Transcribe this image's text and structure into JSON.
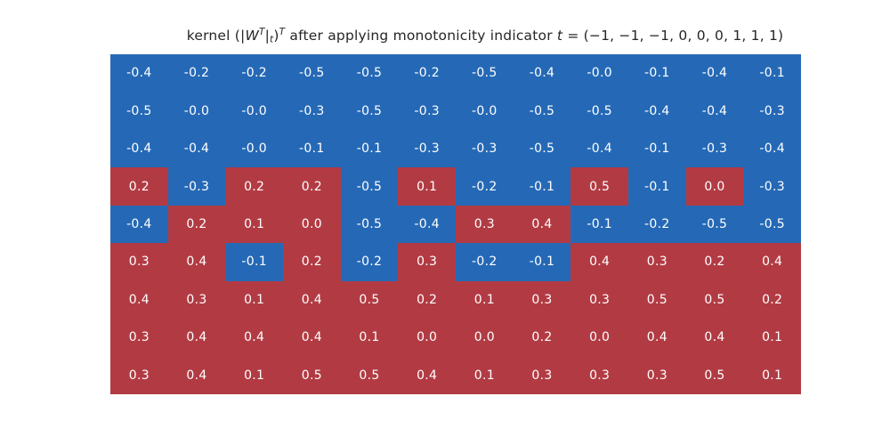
{
  "title": {
    "part1": "kernel (|",
    "w_var": "W",
    "w_sup": "T",
    "bar": "|",
    "t_sub": "t",
    "close_paren": ")",
    "outer_sup": "T",
    "part2": " after applying monotonicity indicator ",
    "t_var": "t",
    "part3": " = (−1, −1, −1, 0, 0, 0, 1, 1, 1)"
  },
  "colors": {
    "positive_cell": "#b23b43",
    "negative_cell": "#2569b6",
    "cell_text": "#ffffff",
    "title_text": "#262626",
    "background": "#ffffff"
  },
  "chart_data": {
    "type": "heatmap",
    "title": "kernel (|Wᵀ|ₜ)ᵀ after applying monotonicity indicator t = (−1, −1, −1, 0, 0, 0, 1, 1, 1)",
    "rows": 9,
    "cols": 12,
    "legend": "none",
    "grid": "off",
    "axes_ticks": "none",
    "cell_labels": [
      [
        "-0.4",
        "-0.2",
        "-0.2",
        "-0.5",
        "-0.5",
        "-0.2",
        "-0.5",
        "-0.4",
        "-0.0",
        "-0.1",
        "-0.4",
        "-0.1"
      ],
      [
        "-0.5",
        "-0.0",
        "-0.0",
        "-0.3",
        "-0.5",
        "-0.3",
        "-0.0",
        "-0.5",
        "-0.5",
        "-0.4",
        "-0.4",
        "-0.3"
      ],
      [
        "-0.4",
        "-0.4",
        "-0.0",
        "-0.1",
        "-0.1",
        "-0.3",
        "-0.3",
        "-0.5",
        "-0.4",
        "-0.1",
        "-0.3",
        "-0.4"
      ],
      [
        "0.2",
        "-0.3",
        "0.2",
        "0.2",
        "-0.5",
        "0.1",
        "-0.2",
        "-0.1",
        "0.5",
        "-0.1",
        "0.0",
        "-0.3"
      ],
      [
        "-0.4",
        "0.2",
        "0.1",
        "0.0",
        "-0.5",
        "-0.4",
        "0.3",
        "0.4",
        "-0.1",
        "-0.2",
        "-0.5",
        "-0.5"
      ],
      [
        "0.3",
        "0.4",
        "-0.1",
        "0.2",
        "-0.2",
        "0.3",
        "-0.2",
        "-0.1",
        "0.4",
        "0.3",
        "0.2",
        "0.4"
      ],
      [
        "0.4",
        "0.3",
        "0.1",
        "0.4",
        "0.5",
        "0.2",
        "0.1",
        "0.3",
        "0.3",
        "0.5",
        "0.5",
        "0.2"
      ],
      [
        "0.3",
        "0.4",
        "0.4",
        "0.4",
        "0.1",
        "0.0",
        "0.0",
        "0.2",
        "0.0",
        "0.4",
        "0.4",
        "0.1"
      ],
      [
        "0.3",
        "0.4",
        "0.1",
        "0.5",
        "0.5",
        "0.4",
        "0.1",
        "0.3",
        "0.3",
        "0.3",
        "0.5",
        "0.1"
      ]
    ],
    "sign_mask": [
      [
        -1,
        -1,
        -1,
        -1,
        -1,
        -1,
        -1,
        -1,
        -1,
        -1,
        -1,
        -1
      ],
      [
        -1,
        -1,
        -1,
        -1,
        -1,
        -1,
        -1,
        -1,
        -1,
        -1,
        -1,
        -1
      ],
      [
        -1,
        -1,
        -1,
        -1,
        -1,
        -1,
        -1,
        -1,
        -1,
        -1,
        -1,
        -1
      ],
      [
        1,
        -1,
        1,
        1,
        -1,
        1,
        -1,
        -1,
        1,
        -1,
        1,
        -1
      ],
      [
        -1,
        1,
        1,
        1,
        -1,
        -1,
        1,
        1,
        -1,
        -1,
        -1,
        -1
      ],
      [
        1,
        1,
        -1,
        1,
        -1,
        1,
        -1,
        -1,
        1,
        1,
        1,
        1
      ],
      [
        1,
        1,
        1,
        1,
        1,
        1,
        1,
        1,
        1,
        1,
        1,
        1
      ],
      [
        1,
        1,
        1,
        1,
        1,
        1,
        1,
        1,
        1,
        1,
        1,
        1
      ],
      [
        1,
        1,
        1,
        1,
        1,
        1,
        1,
        1,
        1,
        1,
        1,
        1
      ]
    ]
  }
}
